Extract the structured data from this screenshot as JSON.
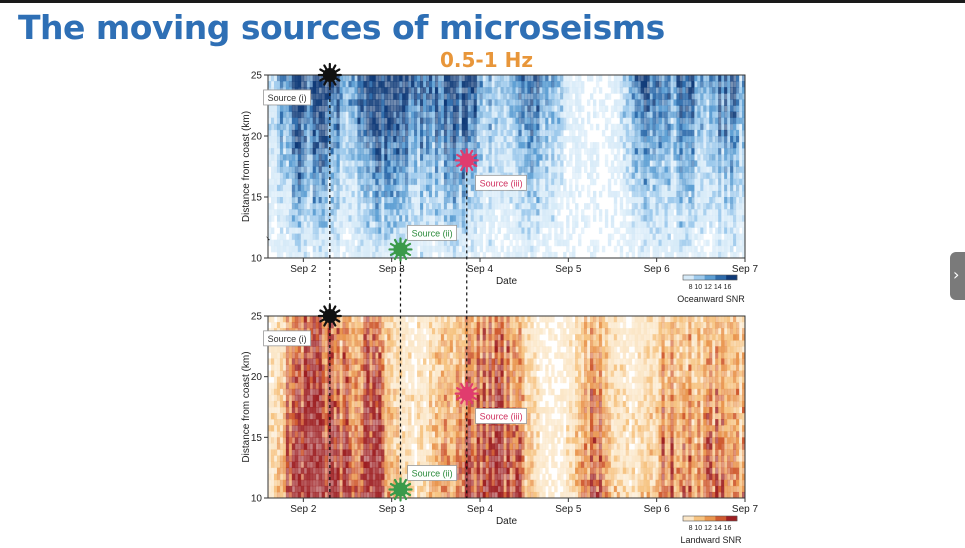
{
  "slide": {
    "title": "The moving sources of microseisms",
    "subtitle": "0.5-1 Hz"
  },
  "panels": [
    {
      "name": "oceanward",
      "ylabel": "Distance from coast (km)",
      "xlabel": "Date",
      "yticks": [
        "10",
        "15",
        "20",
        "25"
      ],
      "xticks": [
        "Sep 2",
        "Sep 3",
        "Sep 4",
        "Sep 5",
        "Sep 6",
        "Sep 7"
      ],
      "colorbar_ticks": "8  10 12 14 16",
      "colorbar_label": "Oceanward SNR",
      "colors": [
        "#ffffff",
        "#d6eaf8",
        "#9cc9ec",
        "#5c9ed3",
        "#2d6bab",
        "#0f3a78"
      ],
      "sources": [
        {
          "label": "Source (i)",
          "day": 2.3,
          "km": 25,
          "color": "#111111",
          "text_color": "#333333",
          "box_day": 1.55,
          "box_km": 23.2
        },
        {
          "label": "Source (ii)",
          "day": 3.1,
          "km": 10.7,
          "color": "#3a9a4a",
          "text_color": "#2a8a3a",
          "box_day": 3.18,
          "box_km": 12.1
        },
        {
          "label": "Source (iii)",
          "day": 3.85,
          "km": 18,
          "color": "#e03c6e",
          "text_color": "#d0305f",
          "box_day": 3.95,
          "box_km": 16.2
        }
      ]
    },
    {
      "name": "landward",
      "ylabel": "Distance from coast (km)",
      "xlabel": "Date",
      "yticks": [
        "10",
        "15",
        "20",
        "25"
      ],
      "xticks": [
        "Sep 2",
        "Sep 3",
        "Sep 4",
        "Sep 5",
        "Sep 6",
        "Sep 7"
      ],
      "colorbar_ticks": "8  10 12 14 16",
      "colorbar_label": "Landward SNR",
      "colors": [
        "#ffffff",
        "#fbe6c6",
        "#f6c27f",
        "#e9954e",
        "#cf5a30",
        "#9d1f22"
      ],
      "sources": [
        {
          "label": "Source (i)",
          "day": 2.3,
          "km": 25,
          "color": "#111111",
          "text_color": "#333333",
          "box_day": 1.55,
          "box_km": 23.2
        },
        {
          "label": "Source (ii)",
          "day": 3.1,
          "km": 10.7,
          "color": "#3a9a4a",
          "text_color": "#2a8a3a",
          "box_day": 3.18,
          "box_km": 12.1
        },
        {
          "label": "Source (iii)",
          "day": 3.85,
          "km": 18.6,
          "color": "#e03c6e",
          "text_color": "#d0305f",
          "box_day": 3.95,
          "box_km": 16.8
        }
      ]
    }
  ],
  "chart_data": [
    {
      "type": "heatmap",
      "x": "Date (Sep 1.6 - Sep 7)",
      "xlabel": "Date",
      "ylabel": "Distance from coast (km)",
      "ylim": [
        10,
        25
      ],
      "colorbar": {
        "label": "Oceanward SNR",
        "range": [
          8,
          16
        ]
      },
      "high_intensity_bands_day": [
        1.9,
        2.3,
        3.3,
        3.85,
        4.6,
        5.9,
        6.8
      ],
      "annotations": [
        {
          "label": "Source (i)",
          "day": 2.3,
          "km": 25
        },
        {
          "label": "Source (ii)",
          "day": 3.1,
          "km": 10.7
        },
        {
          "label": "Source (iii)",
          "day": 3.85,
          "km": 18
        }
      ]
    },
    {
      "type": "heatmap",
      "xlabel": "Date",
      "ylabel": "Distance from coast (km)",
      "ylim": [
        10,
        25
      ],
      "colorbar": {
        "label": "Landward SNR",
        "range": [
          8,
          16
        ]
      },
      "high_intensity_bands_day": [
        2.3,
        3.85,
        4.3,
        5.3,
        6.2,
        6.8
      ],
      "annotations": [
        {
          "label": "Source (i)",
          "day": 2.3,
          "km": 25
        },
        {
          "label": "Source (ii)",
          "day": 3.1,
          "km": 10.7
        },
        {
          "label": "Source (iii)",
          "day": 3.85,
          "km": 18.6
        }
      ]
    }
  ]
}
